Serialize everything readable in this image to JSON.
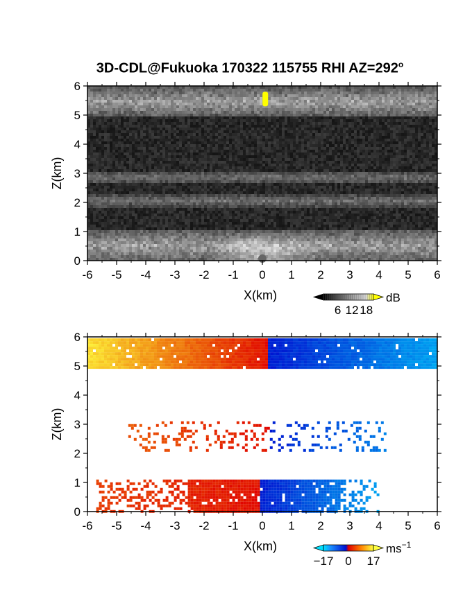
{
  "title": "3D-CDL@Fukuoka 170322 115755 RHI AZ=292",
  "title_sup": "o",
  "chart_data": [
    {
      "type": "heatmap",
      "name": "reflectivity",
      "xlabel": "X(km)",
      "ylabel": "Z(km)",
      "xlim": [
        -6,
        6
      ],
      "ylim": [
        0,
        6
      ],
      "xticks": [
        "-6",
        "-5",
        "-4",
        "-3",
        "-2",
        "-1",
        "0",
        "1",
        "2",
        "3",
        "4",
        "5",
        "6"
      ],
      "yticks": [
        "0",
        "1",
        "2",
        "3",
        "4",
        "5",
        "6"
      ],
      "colorbar": {
        "unit": "dB",
        "ticks": [
          "6",
          "12",
          "18"
        ],
        "range": [
          0,
          21
        ]
      },
      "layers": [
        {
          "z_bottom": 5.0,
          "z_top": 6.0,
          "level": "bright",
          "description": ""
        },
        {
          "z_bottom": 2.7,
          "z_top": 3.1,
          "level": "medium"
        },
        {
          "z_bottom": 1.9,
          "z_top": 2.3,
          "level": "medium"
        },
        {
          "z_bottom": 0.0,
          "z_top": 1.1,
          "level": "bright"
        }
      ],
      "highlight": {
        "x": 0.1,
        "z_bottom": 5.3,
        "z_top": 5.8,
        "color": "#ffff00"
      }
    },
    {
      "type": "heatmap",
      "name": "doppler velocity",
      "xlabel": "X(km)",
      "ylabel": "Z(km)",
      "xlim": [
        -6,
        6
      ],
      "ylim": [
        0,
        6
      ],
      "xticks": [
        "-6",
        "-5",
        "-4",
        "-3",
        "-2",
        "-1",
        "0",
        "1",
        "2",
        "3",
        "4",
        "5",
        "6"
      ],
      "yticks": [
        "0",
        "1",
        "2",
        "3",
        "4",
        "5",
        "6"
      ],
      "colorbar": {
        "unit": "ms",
        "unit_sup": "−1",
        "ticks": [
          "−17",
          "0",
          "17"
        ],
        "range": [
          -17,
          17
        ]
      },
      "bands": [
        {
          "x_start": -6.0,
          "x_end": 6.0,
          "z_bottom": 4.95,
          "z_top": 5.95,
          "velocity_left": 15,
          "velocity_right": -12,
          "sign_change_x": 0.15
        },
        {
          "x_start": -4.6,
          "x_end": 4.2,
          "z_bottom": 2.1,
          "z_top": 3.1,
          "velocity_left": 6,
          "velocity_right": -9,
          "sign_change_x": 0.2
        },
        {
          "x_start": -5.7,
          "x_end": 4.0,
          "z_bottom": 0.0,
          "z_top": 1.1,
          "velocity_left": 4,
          "velocity_right": -12,
          "sign_change_x": -0.1
        }
      ]
    }
  ]
}
